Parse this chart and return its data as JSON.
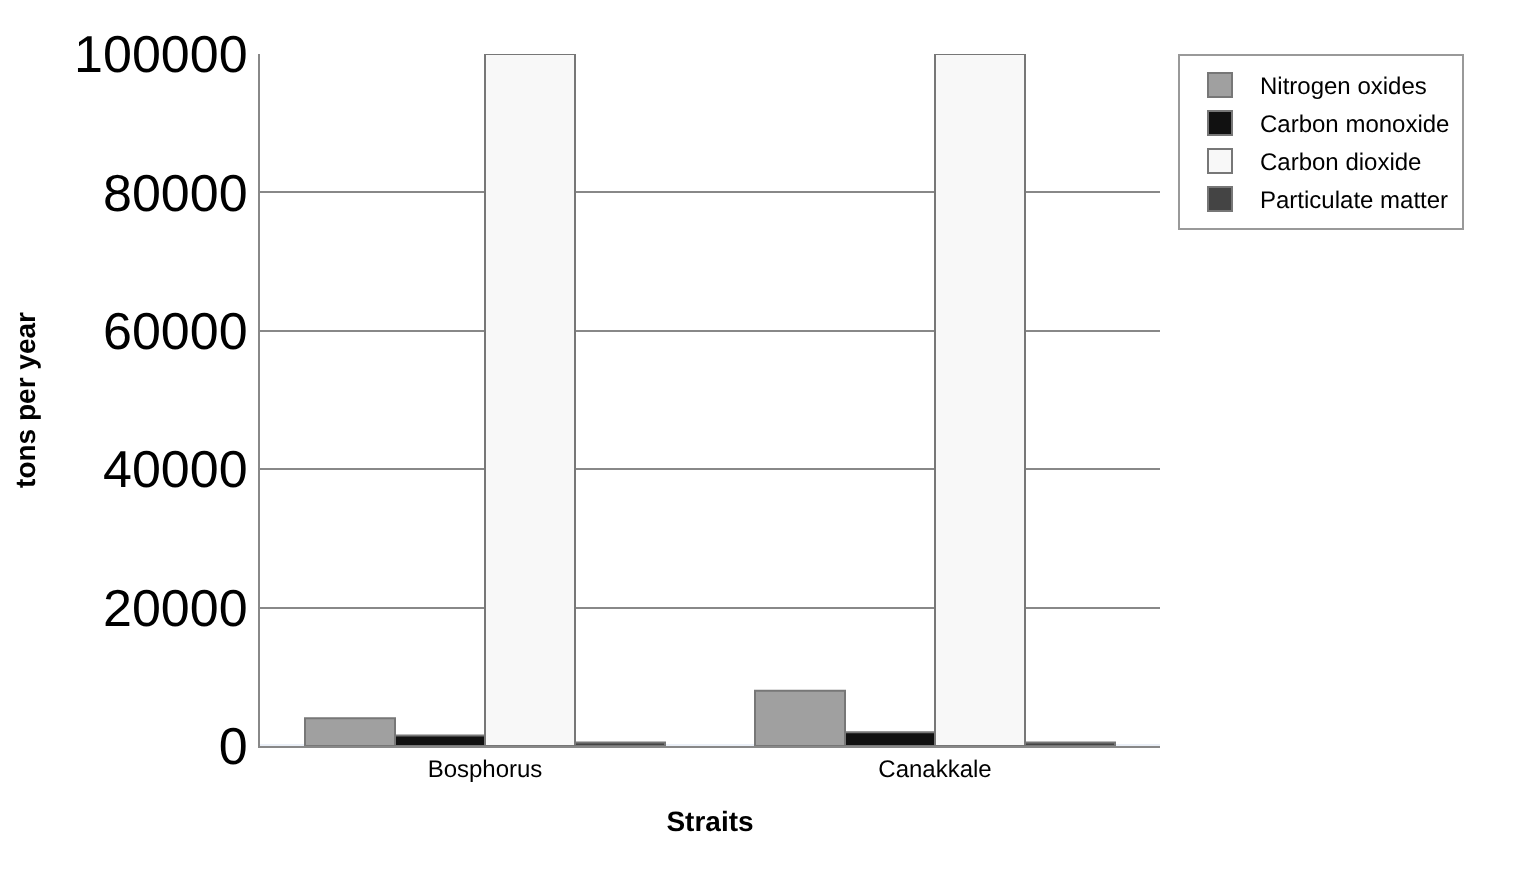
{
  "chart_data": {
    "type": "bar",
    "xlabel": "Straits",
    "ylabel": "tons per year",
    "categories": [
      "Bosphorus",
      "Canakkale"
    ],
    "series": [
      {
        "name": "Nitrogen oxides",
        "color": "#a0a0a0",
        "values": [
          4000,
          8000
        ]
      },
      {
        "name": "Carbon monoxide",
        "color": "#111111",
        "values": [
          1500,
          2000
        ]
      },
      {
        "name": "Carbon dioxide",
        "color": "#f8f8f8",
        "values": [
          100000,
          100000
        ]
      },
      {
        "name": "Particulate matter",
        "color": "#444444",
        "values": [
          500,
          500
        ]
      }
    ],
    "ylim": [
      0,
      100000
    ],
    "yticks": [
      0,
      20000,
      40000,
      60000,
      80000,
      100000
    ],
    "grid": "y",
    "legend": "right"
  }
}
